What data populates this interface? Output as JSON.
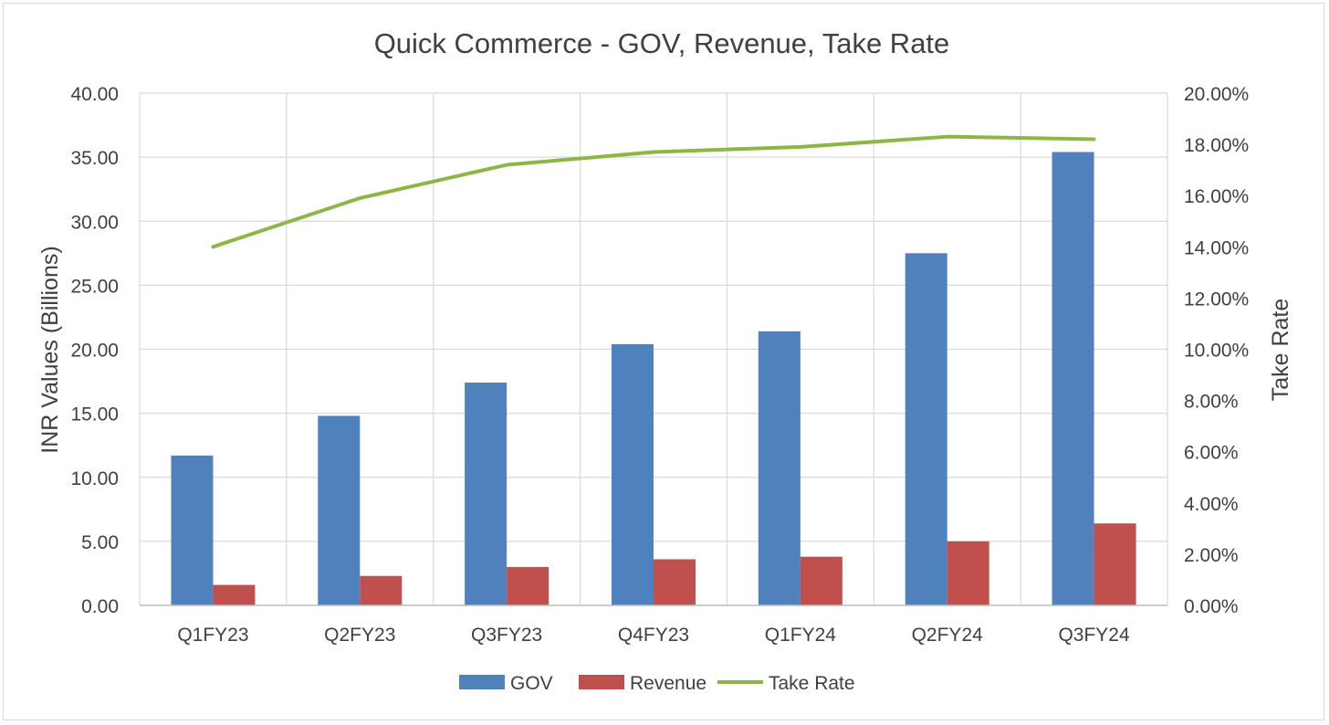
{
  "chart_data": {
    "type": "bar",
    "title": "Quick Commerce - GOV, Revenue, Take Rate",
    "xlabel": "",
    "ylabel": "INR Values (Billions)",
    "y2label": "Take Rate",
    "categories": [
      "Q1FY23",
      "Q2FY23",
      "Q3FY23",
      "Q4FY23",
      "Q1FY24",
      "Q2FY24",
      "Q3FY24"
    ],
    "ylim": [
      0,
      40
    ],
    "y_ticks": [
      "0.00",
      "5.00",
      "10.00",
      "15.00",
      "20.00",
      "25.00",
      "30.00",
      "35.00",
      "40.00"
    ],
    "y2lim": [
      0,
      0.2
    ],
    "y2_ticks": [
      "0.00%",
      "2.00%",
      "4.00%",
      "6.00%",
      "8.00%",
      "10.00%",
      "12.00%",
      "14.00%",
      "16.00%",
      "18.00%",
      "20.00%"
    ],
    "grid": true,
    "legend_position": "bottom",
    "series": [
      {
        "name": "GOV",
        "kind": "bar",
        "axis": "left",
        "color": "#4F81BD",
        "values": [
          11.7,
          14.8,
          17.4,
          20.4,
          21.4,
          27.5,
          35.4
        ]
      },
      {
        "name": "Revenue",
        "kind": "bar",
        "axis": "left",
        "color": "#C0504D",
        "values": [
          1.6,
          2.3,
          3.0,
          3.6,
          3.8,
          5.0,
          6.4
        ]
      },
      {
        "name": "Take Rate",
        "kind": "line",
        "axis": "right",
        "color": "#8DB645",
        "values": [
          0.14,
          0.159,
          0.172,
          0.177,
          0.179,
          0.183,
          0.182
        ]
      }
    ]
  }
}
